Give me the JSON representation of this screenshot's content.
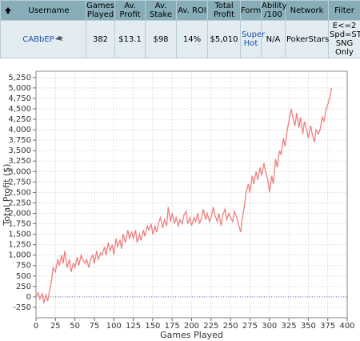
{
  "table": {
    "columns": [
      "Username",
      "Games Played",
      "Av. Profit",
      "Av. Stake",
      "Av. ROI",
      "Total Profit",
      "Form",
      "Ability /100",
      "Network",
      "Filter"
    ],
    "rows": [
      [
        "CABbEP",
        "382",
        "$13.1",
        "$98",
        "14%",
        "$5,010",
        "Super Hot",
        "N/A",
        "PokerStars",
        "E<=2 Spd=ST SNG Only"
      ]
    ]
  },
  "chart_data": {
    "type": "line",
    "x_label": "Games Played",
    "y_label": "Total Profit ($)",
    "xlim": [
      0,
      400
    ],
    "xticks": [
      0,
      25,
      50,
      75,
      100,
      125,
      150,
      175,
      200,
      225,
      250,
      275,
      300,
      325,
      350,
      375,
      400
    ],
    "ylim": [
      -500,
      5400
    ],
    "yticks": [
      -250,
      0,
      250,
      500,
      750,
      {
        "value": 1000,
        "label": "1,000"
      },
      {
        "value": 1250,
        "label": "1,250"
      },
      {
        "value": 1500,
        "label": "1,500"
      },
      {
        "value": 1750,
        "label": "1,750"
      },
      {
        "value": 2000,
        "label": "2,000"
      },
      {
        "value": 2250,
        "label": "2,250"
      },
      {
        "value": 2500,
        "label": "2,500"
      },
      {
        "value": 2750,
        "label": "2,750"
      },
      {
        "value": 3000,
        "label": "3,000"
      },
      {
        "value": 3250,
        "label": "3,250"
      },
      {
        "value": 3500,
        "label": "3,500"
      },
      {
        "value": 3750,
        "label": "3,750"
      },
      {
        "value": 4000,
        "label": "4,000"
      },
      {
        "value": 4250,
        "label": "4,250"
      },
      {
        "value": 4500,
        "label": "4,500"
      },
      {
        "value": 4750,
        "label": "4,750"
      },
      {
        "value": 5000,
        "label": "5,000"
      },
      {
        "value": 5250,
        "label": "5,250"
      }
    ],
    "grid": true,
    "series": [
      {
        "color": "#f08080",
        "x": [
          0,
          3,
          5,
          8,
          10,
          13,
          15,
          18,
          20,
          22,
          25,
          28,
          30,
          33,
          35,
          37,
          40,
          43,
          45,
          48,
          50,
          53,
          55,
          58,
          60,
          63,
          65,
          68,
          70,
          73,
          75,
          78,
          80,
          83,
          85,
          88,
          90,
          93,
          95,
          98,
          100,
          103,
          105,
          108,
          110,
          112,
          115,
          118,
          120,
          123,
          125,
          128,
          130,
          133,
          135,
          138,
          140,
          143,
          145,
          148,
          150,
          153,
          155,
          158,
          160,
          163,
          165,
          168,
          170,
          173,
          175,
          178,
          180,
          183,
          185,
          188,
          190,
          193,
          195,
          198,
          200,
          203,
          205,
          208,
          210,
          213,
          215,
          218,
          220,
          223,
          225,
          228,
          230,
          233,
          235,
          238,
          240,
          243,
          245,
          248,
          250,
          253,
          255,
          258,
          260,
          263,
          265,
          268,
          270,
          273,
          275,
          278,
          280,
          283,
          285,
          288,
          290,
          293,
          295,
          298,
          300,
          303,
          305,
          308,
          310,
          313,
          315,
          318,
          320,
          323,
          325,
          328,
          330,
          333,
          335,
          338,
          340,
          343,
          345,
          348,
          350,
          353,
          355,
          358,
          360,
          363,
          365,
          368,
          370,
          373,
          375,
          378,
          380
        ],
        "values": [
          0,
          100,
          -50,
          80,
          -150,
          50,
          -100,
          200,
          400,
          700,
          600,
          900,
          750,
          1000,
          800,
          1100,
          700,
          900,
          600,
          800,
          700,
          950,
          750,
          1000,
          900,
          800,
          900,
          700,
          900,
          1000,
          800,
          1100,
          900,
          1050,
          1000,
          1200,
          1000,
          1300,
          1100,
          1250,
          1000,
          1400,
          1200,
          1350,
          1150,
          1500,
          1300,
          1600,
          1400,
          1550,
          1400,
          1600,
          1300,
          1500,
          1350,
          1600,
          1450,
          1700,
          1600,
          1750,
          1500,
          1700,
          1550,
          1800,
          1900,
          1650,
          1850,
          1700,
          2150,
          1800,
          2000,
          1750,
          1900,
          1700,
          1850,
          1750,
          1950,
          2050,
          1750,
          1900,
          1700,
          1900,
          1800,
          2000,
          1750,
          1900,
          2100,
          1850,
          2000,
          1800,
          1900,
          2150,
          1950,
          1800,
          2000,
          1700,
          1950,
          2100,
          1850,
          2000,
          1900,
          1800,
          2050,
          1900,
          1750,
          1550,
          1850,
          2200,
          2500,
          2700,
          2500,
          2900,
          2700,
          3000,
          2800,
          3100,
          2900,
          3200,
          3000,
          2800,
          2500,
          2900,
          2700,
          3300,
          3100,
          3500,
          3400,
          3800,
          3600,
          4000,
          4200,
          4500,
          4300,
          4100,
          4400,
          4050,
          4300,
          3900,
          4200,
          4000,
          3800,
          4100,
          3900,
          3700,
          4000,
          3900,
          4000,
          4300,
          4200,
          4500,
          4600,
          4800,
          5000
        ]
      }
    ]
  }
}
